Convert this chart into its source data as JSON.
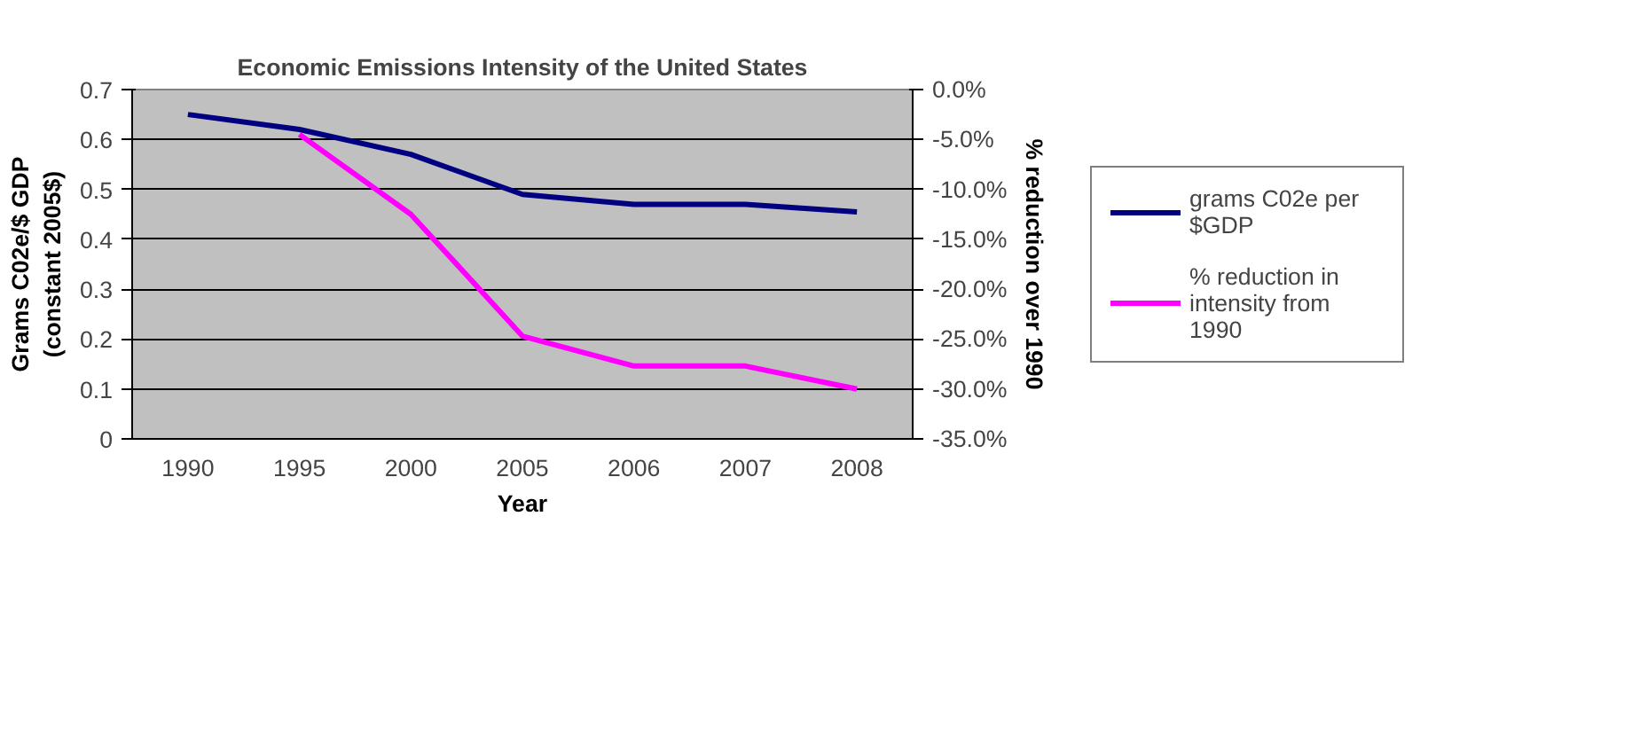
{
  "chart_data": {
    "type": "line",
    "title": "Economic Emissions Intensity of the United States",
    "xlabel": "Year",
    "ylabel": "Grams C02e/$ GDP\n(constant 2005$)",
    "y2label": "% reduction over 1990",
    "categories": [
      "1990",
      "1995",
      "2000",
      "2005",
      "2006",
      "2007",
      "2008"
    ],
    "series": [
      {
        "name": "grams C02e per $GDP",
        "color": "#000080",
        "values": [
          0.65,
          0.62,
          0.57,
          0.49,
          0.47,
          0.47,
          0.455
        ]
      },
      {
        "name": "% reduction in intensity from 1990",
        "color": "#ff00ff",
        "axis": "y2",
        "values": [
          null,
          -4.5,
          -12.5,
          -24.7,
          -27.7,
          -27.7,
          -30
        ]
      }
    ],
    "ylim": [
      0,
      0.7
    ],
    "yticks": [
      0,
      0.1,
      0.2,
      0.3,
      0.4,
      0.5,
      0.6,
      0.7
    ],
    "y2lim": [
      -35,
      0
    ],
    "y2ticks": [
      {
        "value": -35,
        "label": "-35.0%"
      },
      {
        "value": -30,
        "label": "-30.0%"
      },
      {
        "value": -25,
        "label": "-25.0%"
      },
      {
        "value": -20,
        "label": "-20.0%"
      },
      {
        "value": -15,
        "label": "-15.0%"
      },
      {
        "value": -10,
        "label": "-10.0%"
      },
      {
        "value": -5,
        "label": "-5.0%"
      },
      {
        "value": 0,
        "label": "0.0%"
      }
    ],
    "grid": "y",
    "legend": "right",
    "marker": "none",
    "line_style": "solid"
  }
}
